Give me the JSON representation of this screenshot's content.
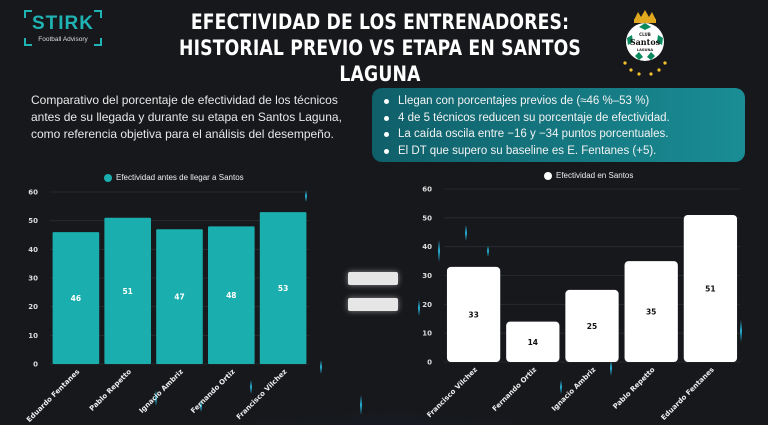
{
  "logo": {
    "brand": "STIRK",
    "tagline": "Football Advisory"
  },
  "title": {
    "line1": "EFECTIVIDAD DE LOS ENTRENADORES:",
    "line2": "HISTORIAL PREVIO VS ETAPA EN SANTOS LAGUNA"
  },
  "crest": {
    "club": "CLUB",
    "name": "Santos",
    "sub": "LAGUNA"
  },
  "description": "Comparativo del porcentaje de efectividad de los técnicos antes de su llegada y durante su etapa en Santos Laguna, como referencia objetiva para el análisis del desempeño.",
  "insights": [
    "Llegan con porcentajes previos de (≈46 %–53 %)",
    "4 de 5 técnicos reducen su porcentaje de efectividad.",
    "La caída oscila entre −16 y −34 puntos porcentuales.",
    "El DT que supero su baseline es E. Fentanes (+5)."
  ],
  "colors": {
    "teal": "#1aaeae",
    "white": "#ffffff",
    "background": "#17181c",
    "insight_panel": "#147a83"
  },
  "chart_data": [
    {
      "type": "bar",
      "title": "",
      "legend": "Efectividad antes de llegar a Santos",
      "legend_position": "top-center",
      "categories": [
        "Eduardo Fentanes",
        "Pablo Repetto",
        "Ignacio Ambriz",
        "Fernando Ortiz",
        "Francisco Vilchez"
      ],
      "values": [
        46,
        51,
        47,
        48,
        53
      ],
      "ylim": [
        0,
        60
      ],
      "yticks": [
        0,
        10,
        20,
        30,
        40,
        50,
        60
      ],
      "xlabel": "",
      "ylabel": "",
      "grid": true,
      "color": "#1aaeae"
    },
    {
      "type": "bar",
      "title": "",
      "legend": "Efectividad en Santos",
      "legend_position": "top-center",
      "categories": [
        "Francisco Vilchez",
        "Fernando Ortiz",
        "Ignacio Ambriz",
        "Pablo Repetto",
        "Eduardo Fentanes"
      ],
      "values": [
        33,
        14,
        25,
        35,
        51
      ],
      "ylim": [
        0,
        60
      ],
      "yticks": [
        0,
        10,
        20,
        30,
        40,
        50,
        60
      ],
      "xlabel": "",
      "ylabel": "",
      "grid": true,
      "color": "#ffffff"
    }
  ]
}
